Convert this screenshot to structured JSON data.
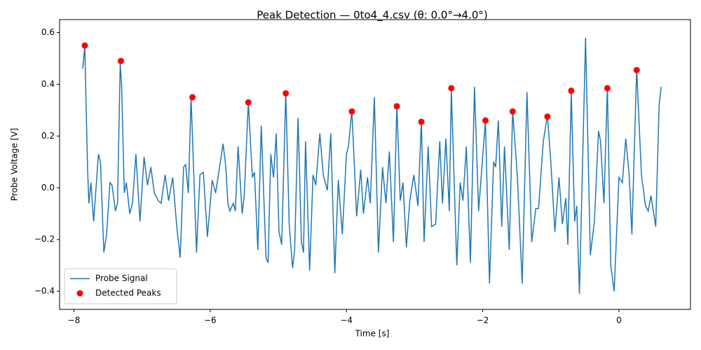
{
  "chart_data": {
    "type": "line",
    "title": "Peak Detection — 0to4_4.csv (θ: 0.0°→4.0°)",
    "x_label": "Time [s]",
    "y_label": "Probe Voltage [V]",
    "xlim": [
      -8.21,
      1.05
    ],
    "ylim": [
      -0.47,
      0.65
    ],
    "xticks": [
      {
        "value": -8,
        "label": "−8"
      },
      {
        "value": -6,
        "label": "−6"
      },
      {
        "value": -4,
        "label": "−4"
      },
      {
        "value": -2,
        "label": "−2"
      },
      0
    ],
    "yticks": [
      {
        "value": -0.4,
        "label": "−0.4"
      },
      {
        "value": -0.2,
        "label": "−0.2"
      },
      {
        "value": 0,
        "label": "0.0"
      },
      0.2,
      0.4,
      0.6
    ],
    "grid": false,
    "legend": "lower left",
    "series": [
      {
        "name": "Probe Signal",
        "color": "#1f77b4",
        "style": "line",
        "x": [
          -7.87,
          -7.84,
          -7.8,
          -7.78,
          -7.75,
          -7.71,
          -7.64,
          -7.61,
          -7.56,
          -7.52,
          -7.47,
          -7.44,
          -7.39,
          -7.36,
          -7.32,
          -7.3,
          -7.26,
          -7.23,
          -7.18,
          -7.14,
          -7.09,
          -7.03,
          -6.97,
          -6.92,
          -6.87,
          -6.82,
          -6.76,
          -6.72,
          -6.66,
          -6.61,
          -6.55,
          -6.49,
          -6.44,
          -6.39,
          -6.36,
          -6.32,
          -6.28,
          -6.2,
          -6.15,
          -6.1,
          -6.04,
          -5.97,
          -5.92,
          -5.81,
          -5.77,
          -5.74,
          -5.71,
          -5.66,
          -5.63,
          -5.59,
          -5.53,
          -5.5,
          -5.44,
          -5.38,
          -5.35,
          -5.3,
          -5.25,
          -5.18,
          -5.15,
          -5.11,
          -5.07,
          -5.03,
          -4.99,
          -4.95,
          -4.89,
          -4.84,
          -4.79,
          -4.76,
          -4.71,
          -4.66,
          -4.63,
          -4.6,
          -4.54,
          -4.49,
          -4.45,
          -4.39,
          -4.34,
          -4.28,
          -4.23,
          -4.17,
          -4.12,
          -4.06,
          -4.0,
          -3.97,
          -3.92,
          -3.85,
          -3.79,
          -3.75,
          -3.69,
          -3.65,
          -3.59,
          -3.53,
          -3.47,
          -3.42,
          -3.37,
          -3.31,
          -3.26,
          -3.21,
          -3.17,
          -3.12,
          -3.07,
          -3.01,
          -2.95,
          -2.9,
          -2.86,
          -2.8,
          -2.75,
          -2.69,
          -2.63,
          -2.59,
          -2.54,
          -2.49,
          -2.46,
          -2.38,
          -2.33,
          -2.29,
          -2.24,
          -2.18,
          -2.12,
          -2.06,
          -2.02,
          -1.96,
          -1.9,
          -1.84,
          -1.81,
          -1.77,
          -1.72,
          -1.68,
          -1.61,
          -1.56,
          -1.49,
          -1.42,
          -1.35,
          -1.28,
          -1.22,
          -1.18,
          -1.11,
          -1.05,
          -1.0,
          -0.94,
          -0.88,
          -0.83,
          -0.78,
          -0.75,
          -0.7,
          -0.65,
          -0.62,
          -0.58,
          -0.49,
          -0.42,
          -0.36,
          -0.3,
          -0.27,
          -0.22,
          -0.17,
          -0.12,
          -0.07,
          0.0,
          0.05,
          0.1,
          0.15,
          0.19,
          0.26,
          0.33,
          0.39,
          0.43,
          0.47,
          0.54,
          0.59,
          0.62
        ],
        "values": [
          0.46,
          0.55,
          0.08,
          -0.06,
          0.02,
          -0.13,
          0.13,
          0.1,
          -0.25,
          -0.18,
          0.02,
          0.01,
          -0.09,
          -0.06,
          0.48,
          0.4,
          -0.02,
          0.02,
          -0.1,
          -0.06,
          0.13,
          -0.13,
          0.12,
          0.01,
          0.08,
          -0.02,
          -0.05,
          -0.06,
          0.05,
          -0.05,
          0.04,
          -0.15,
          -0.27,
          0.08,
          0.09,
          -0.02,
          0.35,
          -0.25,
          0.05,
          0.06,
          -0.19,
          0.03,
          -0.02,
          0.17,
          0.08,
          -0.06,
          -0.09,
          -0.06,
          -0.09,
          0.16,
          -0.1,
          -0.03,
          0.33,
          0.04,
          0.06,
          -0.24,
          0.24,
          -0.27,
          -0.29,
          0.13,
          0.04,
          0.21,
          -0.17,
          -0.22,
          0.37,
          -0.14,
          -0.31,
          -0.24,
          0.27,
          -0.21,
          -0.25,
          0.18,
          -0.32,
          0.05,
          0.01,
          0.21,
          0.05,
          -0.01,
          0.21,
          -0.33,
          0.03,
          -0.18,
          0.13,
          0.16,
          0.3,
          -0.11,
          0.07,
          -0.1,
          0.04,
          -0.06,
          0.35,
          -0.25,
          0.08,
          -0.06,
          0.14,
          -0.21,
          0.32,
          -0.05,
          0.02,
          -0.23,
          -0.05,
          0.05,
          -0.07,
          0.26,
          -0.21,
          0.16,
          -0.15,
          -0.14,
          0.18,
          -0.06,
          0.19,
          -0.09,
          0.38,
          -0.3,
          0.02,
          -0.05,
          0.16,
          -0.29,
          0.39,
          -0.09,
          0.05,
          0.26,
          -0.37,
          0.1,
          0.08,
          0.26,
          -0.15,
          0.16,
          -0.24,
          0.3,
          0.04,
          -0.37,
          0.37,
          -0.21,
          -0.08,
          -0.08,
          0.18,
          0.28,
          0.1,
          -0.17,
          0.04,
          -0.14,
          -0.04,
          -0.22,
          0.37,
          -0.13,
          -0.07,
          -0.41,
          0.58,
          -0.26,
          -0.13,
          0.22,
          0.18,
          -0.06,
          0.39,
          -0.3,
          -0.4,
          0.04,
          0.02,
          0.19,
          0.05,
          -0.18,
          0.46,
          0.05,
          -0.07,
          -0.09,
          -0.03,
          -0.15,
          0.32,
          0.39
        ]
      },
      {
        "name": "Detected Peaks",
        "color": "#ff0000",
        "style": "marker",
        "x": [
          -7.84,
          -7.31,
          -6.26,
          -5.44,
          -4.89,
          -3.92,
          -3.26,
          -2.9,
          -2.46,
          -1.96,
          -1.56,
          -1.05,
          -0.7,
          -0.17,
          0.26
        ],
        "values": [
          0.55,
          0.49,
          0.35,
          0.33,
          0.365,
          0.295,
          0.315,
          0.255,
          0.385,
          0.26,
          0.295,
          0.275,
          0.375,
          0.385,
          0.455
        ]
      }
    ]
  }
}
